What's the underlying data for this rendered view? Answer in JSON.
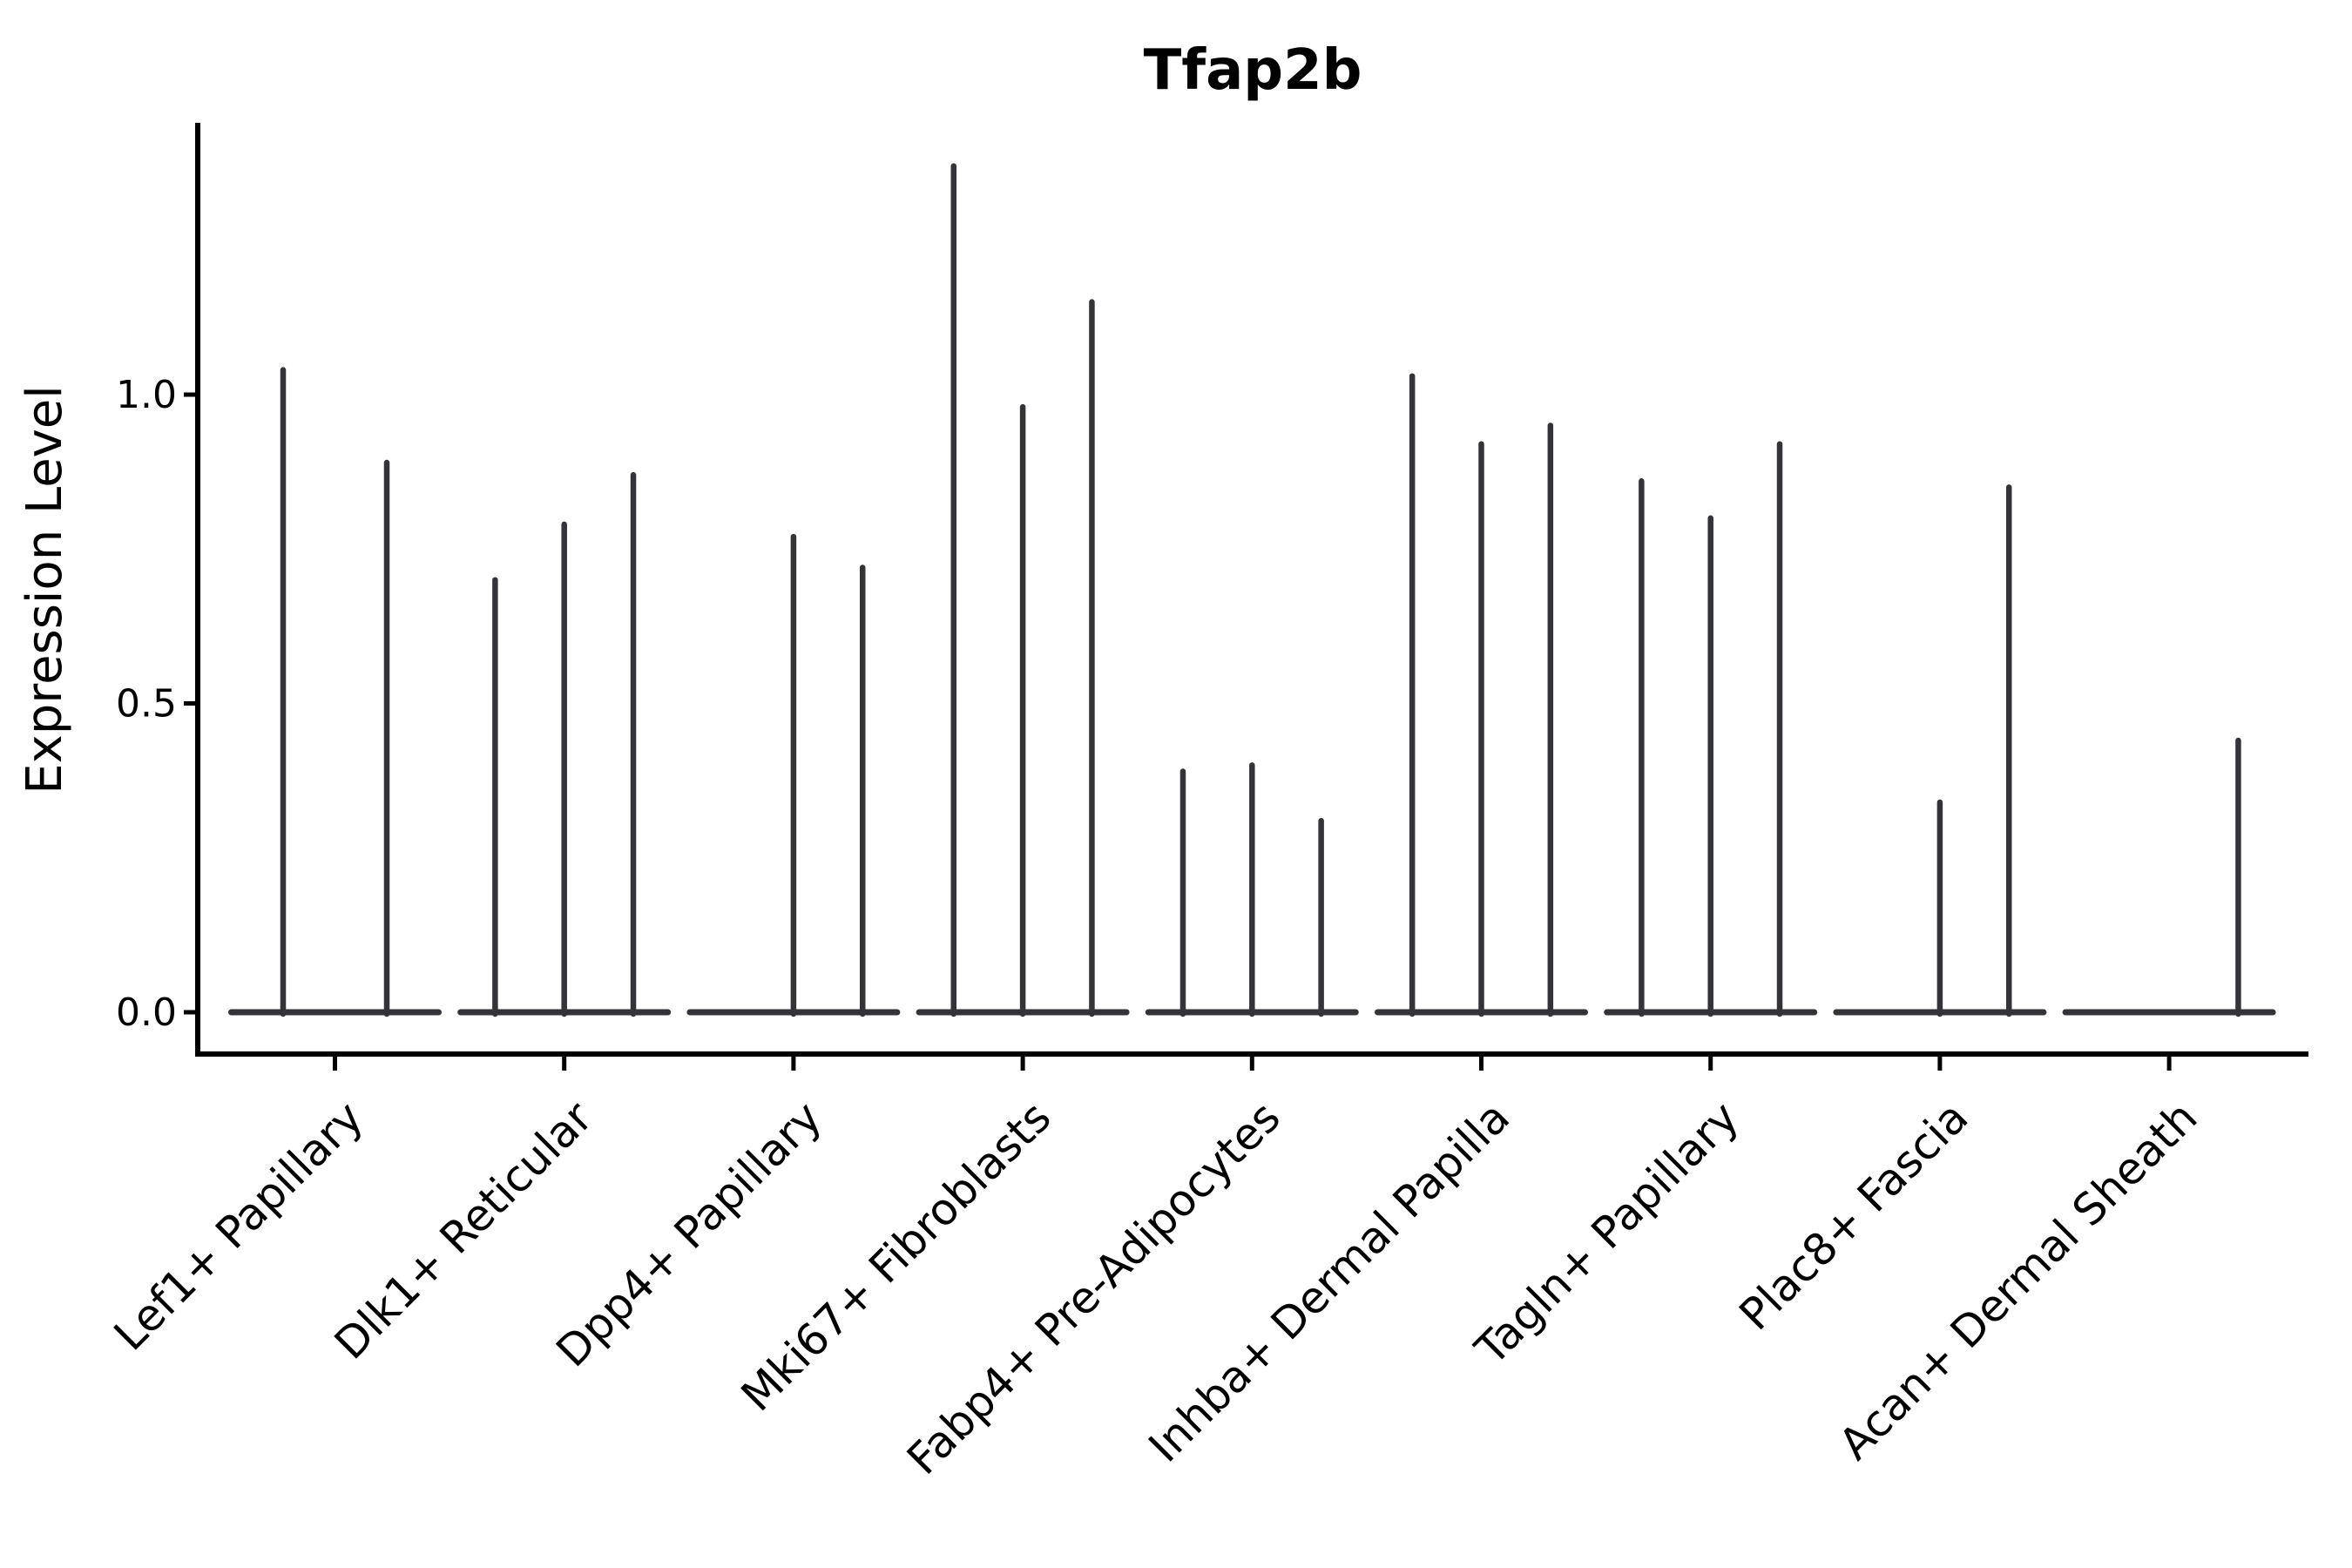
{
  "figure": {
    "title": "Tfap2b",
    "ylabel": "Expression Level",
    "background": "#ffffff"
  },
  "chart_data": {
    "type": "violin",
    "title": "Tfap2b",
    "xlabel": "",
    "ylabel": "Expression Level",
    "ylim": [
      0,
      1.44
    ],
    "ytick_labels": [
      "0.0",
      "0.5",
      "1.0"
    ],
    "ytick_values": [
      0.0,
      0.5,
      1.0
    ],
    "grid": false,
    "legend": null,
    "description": "Violin plot of Tfap2b expression; each category holds 2-3 narrow split violins rendered as a flat baseline at 0 with a thin spike up to the max expression value; 0.0 means a flat violin with no spike",
    "categories": [
      "Lef1+ Papillary",
      "Dlk1+ Reticular",
      "Dpp4+ Papillary",
      "Mki67+ Fibroblasts",
      "Fabp4+ Pre-Adipocytes",
      "Inhba+ Dermal Papilla",
      "Tagln+ Papillary",
      "Plac8+ Fascia",
      "Acan+ Dermal Sheath"
    ],
    "violins": [
      {
        "category": "Lef1+ Papillary",
        "max_values": [
          1.04,
          0.89
        ]
      },
      {
        "category": "Dlk1+ Reticular",
        "max_values": [
          0.7,
          0.79,
          0.87
        ]
      },
      {
        "category": "Dpp4+ Papillary",
        "max_values": [
          0.0,
          0.77,
          0.72
        ]
      },
      {
        "category": "Mki67+ Fibroblasts",
        "max_values": [
          1.37,
          0.98,
          1.15
        ]
      },
      {
        "category": "Fabp4+ Pre-Adipocytes",
        "max_values": [
          0.39,
          0.4,
          0.31
        ]
      },
      {
        "category": "Inhba+ Dermal Papilla",
        "max_values": [
          1.03,
          0.92,
          0.95
        ]
      },
      {
        "category": "Tagln+ Papillary",
        "max_values": [
          0.86,
          0.8,
          0.92
        ]
      },
      {
        "category": "Plac8+ Fascia",
        "max_values": [
          0.0,
          0.34,
          0.85
        ]
      },
      {
        "category": "Acan+ Dermal Sheath",
        "max_values": [
          0.0,
          0.0,
          0.44
        ]
      }
    ],
    "colors": {
      "violin_stroke": "#343438",
      "axis": "#000000",
      "text": "#000000",
      "background": "#ffffff"
    }
  }
}
